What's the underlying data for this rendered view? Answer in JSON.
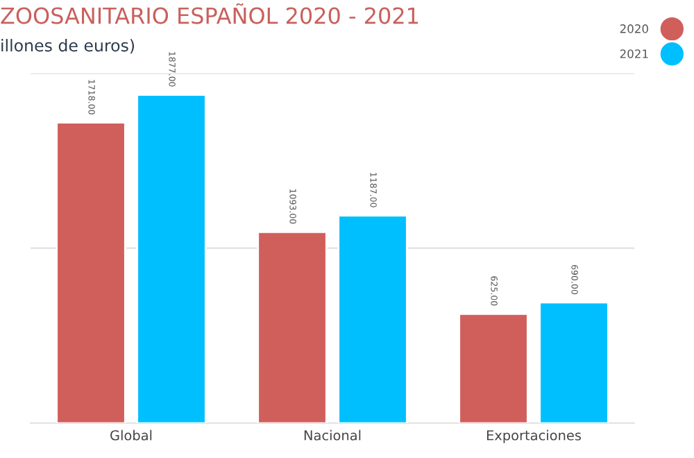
{
  "chart_data": {
    "type": "bar",
    "title": "ZOOSANITARIO ESPAÑOL 2020 - 2021",
    "subtitle": "illones de euros)",
    "categories": [
      "Global",
      "Nacional",
      "Exportaciones"
    ],
    "series": [
      {
        "name": "2020",
        "color": "#d05f5c",
        "values": [
          1718.0,
          1093.0,
          625.0
        ],
        "value_labels": [
          "1718.00",
          "1093.00",
          "625.00"
        ]
      },
      {
        "name": "2021",
        "color": "#00bfff",
        "values": [
          1877.0,
          1187.0,
          690.0
        ],
        "value_labels": [
          "1877.00",
          "1187.00",
          "690.00"
        ]
      }
    ],
    "ylim": [
      0,
      2000
    ],
    "yticks": [
      {
        "value": 0,
        "label": null
      },
      {
        "value": 1000,
        "label": null
      },
      {
        "value": 2000,
        "label": null
      }
    ],
    "tick_labels": "x",
    "grid": "y",
    "legend": "top right"
  }
}
